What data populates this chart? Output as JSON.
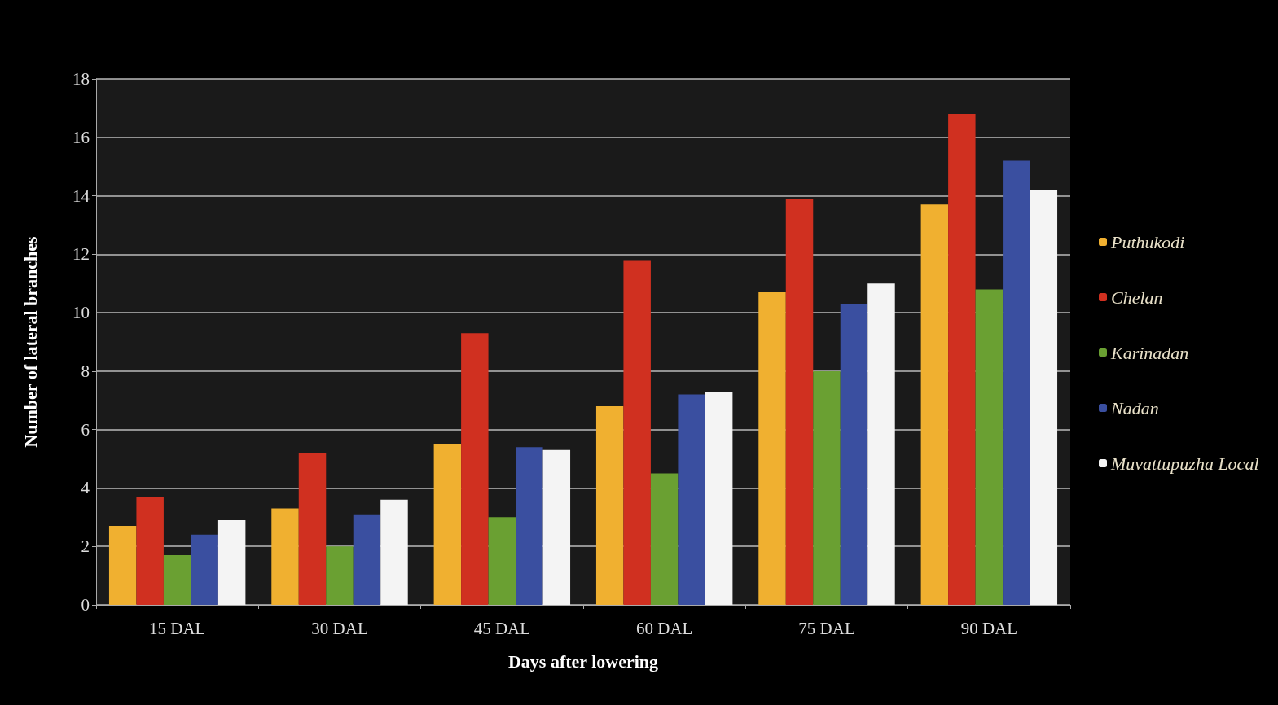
{
  "chart_data": {
    "type": "bar",
    "xlabel": "Days after lowering",
    "ylabel": "Number of lateral branches",
    "categories": [
      "15 DAL",
      "30 DAL",
      "45 DAL",
      "60 DAL",
      "75 DAL",
      "90 DAL"
    ],
    "series": [
      {
        "name": "Puthukodi",
        "color": "#f0b030",
        "values": [
          2.7,
          3.3,
          5.5,
          6.8,
          10.7,
          13.7
        ]
      },
      {
        "name": "Chelan",
        "color": "#d03020",
        "values": [
          3.7,
          5.2,
          9.3,
          11.8,
          13.9,
          16.8
        ]
      },
      {
        "name": "Karinadan",
        "color": "#6aa032",
        "values": [
          1.7,
          2.0,
          3.0,
          4.5,
          8.0,
          10.8
        ]
      },
      {
        "name": "Nadan",
        "color": "#3a4fa0",
        "values": [
          2.4,
          3.1,
          5.4,
          7.2,
          10.3,
          15.2
        ]
      },
      {
        "name": "Muvattupuzha Local",
        "color": "#f4f4f4",
        "values": [
          2.9,
          3.6,
          5.3,
          7.3,
          11.0,
          14.2
        ]
      }
    ],
    "ylim": [
      0,
      18
    ],
    "yticks": [
      0,
      2,
      4,
      6,
      8,
      10,
      12,
      14,
      16,
      18
    ],
    "grid": "y",
    "legend": "right"
  }
}
